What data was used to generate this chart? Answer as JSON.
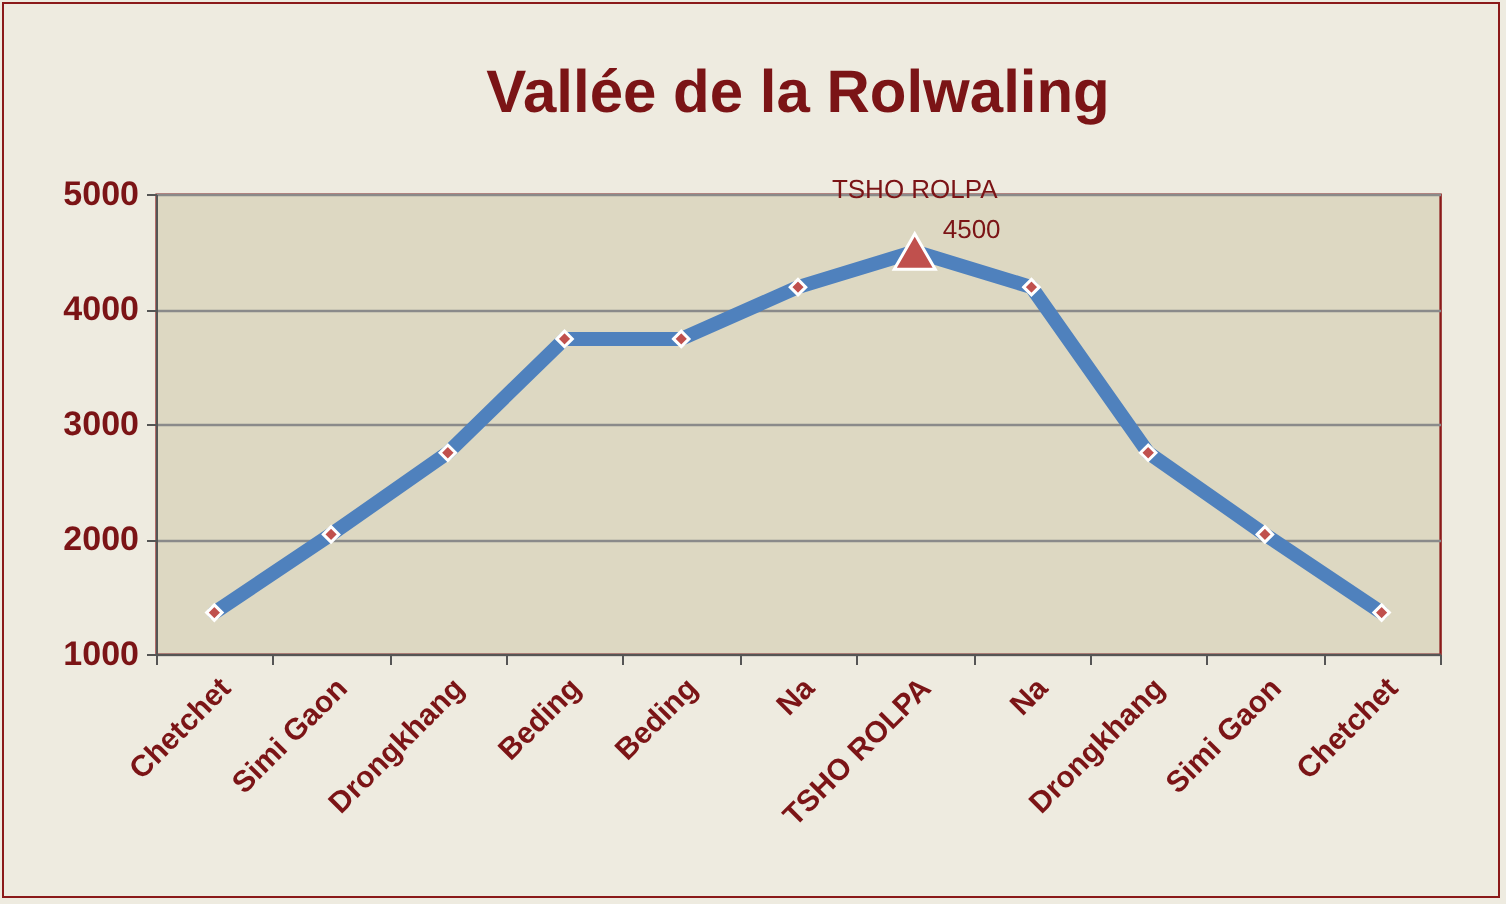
{
  "chart_data": {
    "type": "line",
    "title": "Vallée de la Rolwaling",
    "categories": [
      "Chetchet",
      "Simi Gaon",
      "Drongkhang",
      "Beding",
      "Beding",
      "Na",
      "TSHO ROLPA",
      "Na",
      "Drongkhang",
      "Simi Gaon",
      "Chetchet"
    ],
    "series": [
      {
        "color": "#4f81bd",
        "marker": "none",
        "line_style": "solid",
        "values": [
          1360,
          2040,
          2750,
          3740,
          3740,
          4190,
          4500,
          4190,
          2750,
          2040,
          1360
        ]
      },
      {
        "type": "scatter",
        "color": "#c0504d",
        "marker": "diamond",
        "values": [
          1360,
          2040,
          2750,
          3740,
          3740,
          4190,
          null,
          4190,
          2750,
          2040,
          1360
        ]
      },
      {
        "type": "scatter",
        "color": "#c0504d",
        "marker": "triangle",
        "x": [
          "TSHO ROLPA"
        ],
        "values": [
          4500
        ],
        "value_labels": [
          "4500"
        ]
      }
    ],
    "annotations": [
      {
        "text": "TSHO ROLPA",
        "x": "TSHO ROLPA",
        "y": 4500
      }
    ],
    "ylim": [
      1000,
      5000
    ],
    "yticks": [
      1000,
      2000,
      3000,
      4000,
      5000
    ],
    "grid": "y"
  }
}
